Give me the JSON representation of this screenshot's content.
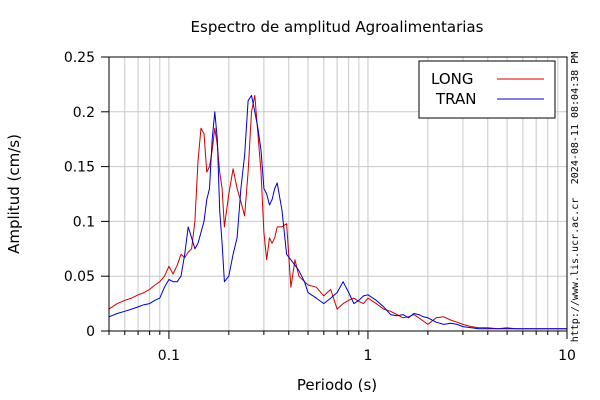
{
  "chart_data": {
    "type": "line",
    "title": "Espectro de amplitud Agroalimentarias",
    "xlabel": "Periodo (s)",
    "ylabel": "Amplitud (cm/s)",
    "x_scale": "log",
    "xlim": [
      0.05,
      10
    ],
    "ylim": [
      0,
      0.25
    ],
    "x_ticks": [
      {
        "value": 0.1,
        "label": "0.1"
      },
      {
        "value": 1,
        "label": "1"
      },
      {
        "value": 10,
        "label": "10"
      }
    ],
    "y_ticks": [
      {
        "value": 0,
        "label": "0"
      },
      {
        "value": 0.05,
        "label": "0.05"
      },
      {
        "value": 0.1,
        "label": "0.1"
      },
      {
        "value": 0.15,
        "label": "0.15"
      },
      {
        "value": 0.2,
        "label": "0.2"
      },
      {
        "value": 0.25,
        "label": "0.25"
      }
    ],
    "grid": true,
    "legend_position": "top-right",
    "series": [
      {
        "name": "LONG",
        "color": "#cc0000",
        "x": [
          0.05,
          0.055,
          0.06,
          0.065,
          0.07,
          0.075,
          0.08,
          0.085,
          0.09,
          0.095,
          0.1,
          0.105,
          0.11,
          0.115,
          0.12,
          0.125,
          0.13,
          0.135,
          0.14,
          0.145,
          0.15,
          0.155,
          0.16,
          0.165,
          0.17,
          0.175,
          0.18,
          0.185,
          0.19,
          0.2,
          0.21,
          0.22,
          0.23,
          0.24,
          0.25,
          0.26,
          0.27,
          0.28,
          0.29,
          0.3,
          0.31,
          0.32,
          0.33,
          0.34,
          0.35,
          0.37,
          0.39,
          0.41,
          0.43,
          0.45,
          0.48,
          0.5,
          0.55,
          0.6,
          0.65,
          0.7,
          0.75,
          0.8,
          0.85,
          0.9,
          0.95,
          1.0,
          1.1,
          1.2,
          1.3,
          1.4,
          1.5,
          1.6,
          1.7,
          1.8,
          1.9,
          2.0,
          2.2,
          2.4,
          2.6,
          2.8,
          3.0,
          3.3,
          3.6,
          4.0,
          4.5,
          5.0,
          5.5,
          6.0,
          7.0,
          8.0,
          9.0,
          10.0
        ],
        "y": [
          0.02,
          0.025,
          0.028,
          0.03,
          0.033,
          0.035,
          0.038,
          0.042,
          0.045,
          0.05,
          0.059,
          0.052,
          0.06,
          0.07,
          0.067,
          0.072,
          0.075,
          0.1,
          0.155,
          0.185,
          0.18,
          0.145,
          0.15,
          0.165,
          0.185,
          0.17,
          0.145,
          0.13,
          0.095,
          0.125,
          0.148,
          0.13,
          0.118,
          0.105,
          0.145,
          0.2,
          0.215,
          0.18,
          0.145,
          0.09,
          0.065,
          0.085,
          0.08,
          0.085,
          0.095,
          0.095,
          0.098,
          0.04,
          0.065,
          0.05,
          0.045,
          0.042,
          0.04,
          0.032,
          0.038,
          0.02,
          0.025,
          0.028,
          0.03,
          0.027,
          0.025,
          0.03,
          0.025,
          0.02,
          0.018,
          0.015,
          0.012,
          0.013,
          0.015,
          0.012,
          0.009,
          0.006,
          0.012,
          0.013,
          0.01,
          0.008,
          0.006,
          0.004,
          0.003,
          0.003,
          0.002,
          0.003,
          0.002,
          0.002,
          0.002,
          0.002,
          0.002,
          0.002
        ]
      },
      {
        "name": "TRAN",
        "color": "#0000cc",
        "x": [
          0.05,
          0.055,
          0.06,
          0.065,
          0.07,
          0.075,
          0.08,
          0.085,
          0.09,
          0.095,
          0.1,
          0.105,
          0.11,
          0.115,
          0.12,
          0.125,
          0.13,
          0.135,
          0.14,
          0.145,
          0.15,
          0.155,
          0.16,
          0.165,
          0.17,
          0.175,
          0.18,
          0.185,
          0.19,
          0.2,
          0.21,
          0.22,
          0.23,
          0.24,
          0.25,
          0.26,
          0.27,
          0.28,
          0.29,
          0.3,
          0.31,
          0.32,
          0.33,
          0.34,
          0.35,
          0.37,
          0.39,
          0.41,
          0.43,
          0.45,
          0.48,
          0.5,
          0.55,
          0.6,
          0.65,
          0.7,
          0.75,
          0.8,
          0.85,
          0.9,
          0.95,
          1.0,
          1.1,
          1.2,
          1.3,
          1.4,
          1.5,
          1.6,
          1.7,
          1.8,
          1.9,
          2.0,
          2.2,
          2.4,
          2.6,
          2.8,
          3.0,
          3.3,
          3.6,
          4.0,
          4.5,
          5.0,
          5.5,
          6.0,
          7.0,
          8.0,
          9.0,
          10.0
        ],
        "y": [
          0.013,
          0.016,
          0.018,
          0.02,
          0.022,
          0.024,
          0.025,
          0.028,
          0.03,
          0.04,
          0.047,
          0.045,
          0.045,
          0.05,
          0.07,
          0.095,
          0.085,
          0.075,
          0.08,
          0.09,
          0.1,
          0.12,
          0.13,
          0.175,
          0.2,
          0.175,
          0.11,
          0.08,
          0.045,
          0.05,
          0.07,
          0.085,
          0.13,
          0.16,
          0.21,
          0.215,
          0.2,
          0.185,
          0.165,
          0.13,
          0.125,
          0.115,
          0.12,
          0.13,
          0.135,
          0.11,
          0.07,
          0.065,
          0.06,
          0.055,
          0.045,
          0.035,
          0.03,
          0.025,
          0.03,
          0.035,
          0.045,
          0.035,
          0.025,
          0.028,
          0.032,
          0.033,
          0.028,
          0.022,
          0.015,
          0.014,
          0.015,
          0.012,
          0.016,
          0.015,
          0.013,
          0.012,
          0.008,
          0.006,
          0.007,
          0.006,
          0.004,
          0.003,
          0.002,
          0.002,
          0.002,
          0.002,
          0.002,
          0.002,
          0.002,
          0.002,
          0.002,
          0.002
        ]
      }
    ]
  },
  "side_labels": {
    "timestamp": "2024-08-11 08:04:38 PM",
    "url": "http://www.lis.ucr.ac.cr"
  }
}
